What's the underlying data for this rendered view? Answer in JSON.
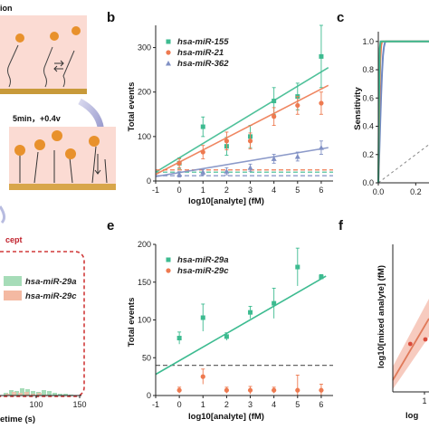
{
  "panel_labels": {
    "b": "b",
    "c": "c",
    "e": "e",
    "f": "f"
  },
  "schematic": {
    "top_fragment": "ion",
    "step_text": "5min，+0.4v",
    "concept_fragment": "cept"
  },
  "dwell": {
    "legend": [
      "hsa-miR-29a",
      "hsa-miR-29c"
    ],
    "xticks": [
      "100",
      "150"
    ],
    "xlabel_fragment": "etime (s)",
    "colors": {
      "a": "#a6dcb8",
      "c": "#f4b9a2"
    }
  },
  "chart_data": [
    {
      "panel": "b",
      "type": "scatter",
      "xlabel": "log10[analyte] (fM)",
      "ylabel": "Total events",
      "xlim": [
        -1,
        6.5
      ],
      "ylim": [
        0,
        350
      ],
      "xticks": [
        "-1",
        "0",
        "1",
        "2",
        "3",
        "4",
        "5",
        "6"
      ],
      "yticks": [
        "0",
        "100",
        "200",
        "300"
      ],
      "x": [
        0,
        1,
        2,
        3,
        4,
        5,
        6
      ],
      "legend_position": "top-left",
      "series": [
        {
          "name": "hsa-miR-155",
          "color": "#3dbb90",
          "marker": "square",
          "values": [
            40,
            122,
            78,
            100,
            180,
            190,
            280
          ],
          "err": [
            12,
            22,
            20,
            25,
            30,
            30,
            70
          ],
          "fit": [
            20,
            255
          ],
          "threshold": 20
        },
        {
          "name": "hsa-miR-21",
          "color": "#ee7a50",
          "marker": "circle",
          "values": [
            40,
            65,
            90,
            90,
            145,
            170,
            175
          ],
          "err": [
            10,
            15,
            20,
            18,
            20,
            20,
            25
          ],
          "fit": [
            15,
            215
          ],
          "threshold": 25
        },
        {
          "name": "hsa-miR-362",
          "color": "#8090c4",
          "marker": "triangle",
          "values": [
            15,
            20,
            22,
            30,
            50,
            55,
            75
          ],
          "err": [
            6,
            6,
            8,
            8,
            10,
            10,
            15
          ],
          "fit": [
            10,
            75
          ],
          "threshold": 12
        }
      ]
    },
    {
      "panel": "c",
      "type": "line",
      "ylabel": "Sensitivity",
      "xlim": [
        0,
        0.3
      ],
      "ylim": [
        0,
        1.05
      ],
      "xticks": [
        "0.0",
        "0.2"
      ],
      "yticks": [
        "0.0",
        "0.2",
        "0.4",
        "0.6",
        "0.8",
        "1.0"
      ],
      "series": [
        {
          "color": "#6f88c4",
          "x": [
            0,
            0.005,
            0.01,
            0.015,
            0.02,
            0.025,
            0.03,
            0.035,
            0.04
          ],
          "values": [
            0,
            0.2,
            0.42,
            0.62,
            0.78,
            0.9,
            0.96,
            0.99,
            1.0
          ]
        },
        {
          "color": "#ee7a50",
          "x": [
            0,
            0.005,
            0.01,
            0.015,
            0.02
          ],
          "values": [
            0,
            0.5,
            0.85,
            0.97,
            1.0
          ]
        },
        {
          "color": "#3dbb90",
          "x": [
            0,
            0.004,
            0.008,
            0.012
          ],
          "values": [
            0,
            0.6,
            0.95,
            1.0
          ]
        }
      ],
      "reference": {
        "x": [
          0,
          0.3
        ],
        "values": [
          0,
          0.3
        ]
      }
    },
    {
      "panel": "e",
      "type": "scatter",
      "xlabel": "log10[analyte] (fM)",
      "ylabel": "Total events",
      "xlim": [
        -1,
        6.5
      ],
      "ylim": [
        0,
        200
      ],
      "xticks": [
        "-1",
        "0",
        "1",
        "2",
        "3",
        "4",
        "5",
        "6"
      ],
      "yticks": [
        "0",
        "50",
        "100",
        "150",
        "200"
      ],
      "x": [
        0,
        1,
        2,
        3,
        4,
        5,
        6
      ],
      "legend_position": "top-left",
      "threshold": 40,
      "series": [
        {
          "name": "hsa-miR-29a",
          "color": "#3dbb90",
          "marker": "square",
          "values": [
            76,
            103,
            78,
            110,
            122,
            170,
            157
          ],
          "err": [
            8,
            18,
            5,
            8,
            20,
            25,
            3
          ],
          "fit": [
            28,
            158
          ]
        },
        {
          "name": "hsa-miR-29c",
          "color": "#ee7a50",
          "marker": "circle",
          "values": [
            7,
            25,
            7,
            7,
            7,
            7,
            7
          ],
          "err": [
            4,
            10,
            4,
            5,
            4,
            20,
            8
          ]
        }
      ]
    },
    {
      "panel": "f",
      "type": "scatter",
      "ylabel": "log10[mixed analyte] (fM)",
      "xlabel_fragment": "log",
      "xticks": [
        "1"
      ],
      "x": [
        0.8,
        1.2
      ],
      "values": [
        1.5,
        1.6
      ]
    }
  ]
}
